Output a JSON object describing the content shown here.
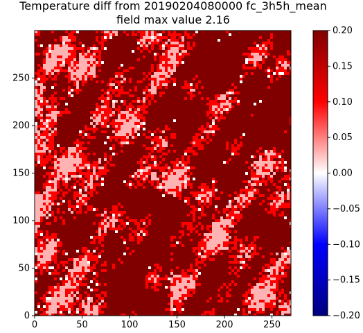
{
  "chart_data": {
    "type": "heatmap",
    "title": "Temperature diff from 20190204080000 fc_3h5h_mean",
    "subtitle": "field max value 2.16",
    "xlabel": "",
    "ylabel": "",
    "xlim": [
      0,
      270
    ],
    "ylim": [
      0,
      300
    ],
    "x_ticks": [
      0,
      50,
      100,
      150,
      200,
      250
    ],
    "y_ticks": [
      0,
      50,
      100,
      150,
      200,
      250
    ],
    "grid": false,
    "colormap": "seismic",
    "colorbar": {
      "range": [
        -0.2,
        0.2
      ],
      "ticks": [
        "0.20",
        "0.15",
        "0.10",
        "0.05",
        "0.00",
        "−0.05",
        "−0.10",
        "−0.15",
        "−0.20"
      ],
      "position": "right"
    },
    "colors": {
      "high": "#800000",
      "mid_high": "#ff0000",
      "low_positive": "#ffb3b3",
      "zero": "#ffffff",
      "negative": "#0000cc",
      "low": "#000080"
    }
  }
}
